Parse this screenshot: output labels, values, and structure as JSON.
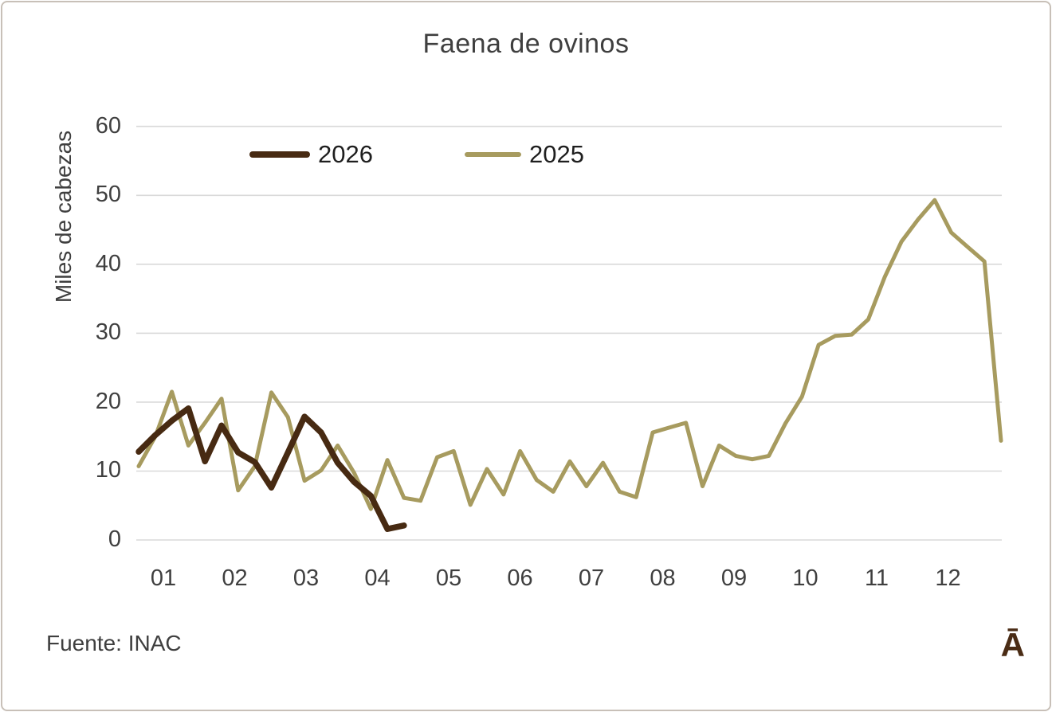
{
  "chart": {
    "title": "Faena de ovinos",
    "y_axis_title": "Miles de cabezas",
    "source_note": "Fuente: INAC",
    "logo_glyph": "Ā",
    "legend": {
      "item_2026": "2026",
      "item_2025": "2025"
    }
  },
  "colors": {
    "series_2026": "#472a12",
    "series_2025": "#a79b5f",
    "gridline": "#d9d9d9",
    "axis_text": "#3f3f3f",
    "legend_text": "#1f1f1f",
    "frame_border": "#c8c0b8",
    "logo": "#4a2c15",
    "background": "#ffffff"
  },
  "chart_data": {
    "type": "line",
    "title": "Faena de ovinos",
    "xlabel": "",
    "ylabel": "Miles de cabezas",
    "x_unit": "week of year (weekly data, month labels shown)",
    "x_tick_labels": [
      "01",
      "02",
      "03",
      "04",
      "05",
      "06",
      "07",
      "08",
      "09",
      "10",
      "11",
      "12"
    ],
    "y_ticks": [
      0,
      10,
      20,
      30,
      40,
      50,
      60
    ],
    "ylim": [
      0,
      60
    ],
    "grid": "horizontal",
    "legend_position": "top-left-inside",
    "series": [
      {
        "name": "2025",
        "color": "#a79b5f",
        "values": [
          10.7,
          15.0,
          21.5,
          13.7,
          17.0,
          20.5,
          7.2,
          10.7,
          21.4,
          17.8,
          8.6,
          10.1,
          13.7,
          9.7,
          4.5,
          11.6,
          6.1,
          5.7,
          12.0,
          12.9,
          5.1,
          10.3,
          6.6,
          12.9,
          8.7,
          7.0,
          11.4,
          7.8,
          11.2,
          7.0,
          6.2,
          15.6,
          16.3,
          17.0,
          7.8,
          13.7,
          12.2,
          11.7,
          12.2,
          16.9,
          20.8,
          28.3,
          29.6,
          29.8,
          32.0,
          38.2,
          43.3,
          46.5,
          49.3,
          44.6,
          42.5,
          40.4,
          14.4
        ]
      },
      {
        "name": "2026",
        "color": "#472a12",
        "values": [
          12.8,
          15.2,
          17.3,
          19.1,
          11.4,
          16.6,
          12.7,
          11.3,
          7.6,
          12.7,
          17.9,
          15.6,
          11.2,
          8.4,
          6.4,
          1.6,
          2.1
        ]
      }
    ]
  }
}
